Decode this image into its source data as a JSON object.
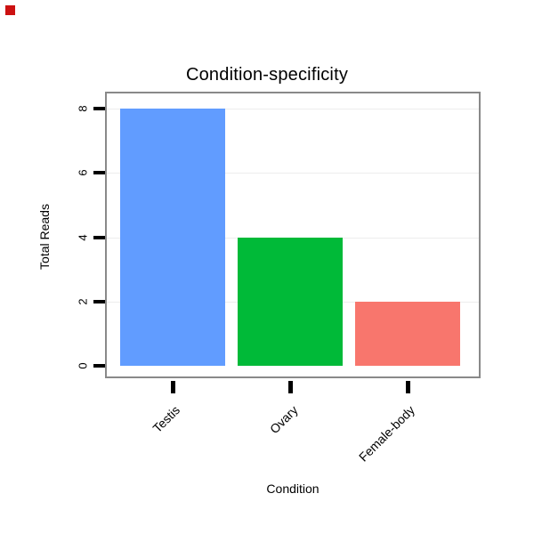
{
  "chart_data": {
    "type": "bar",
    "title": "Condition-specificity",
    "xlabel": "Condition",
    "ylabel": "Total Reads",
    "categories": [
      "Testis",
      "Ovary",
      "Female-body"
    ],
    "values": [
      8,
      4,
      2
    ],
    "colors": [
      "#619CFF",
      "#00BA38",
      "#F8766D"
    ],
    "ylim": [
      0,
      8
    ],
    "yticks": [
      0,
      2,
      4,
      6,
      8
    ],
    "grid": "faint horizontal gridlines at tick values",
    "legend": "none",
    "plot_border_color": "#898989",
    "tick_color": "#000000"
  }
}
